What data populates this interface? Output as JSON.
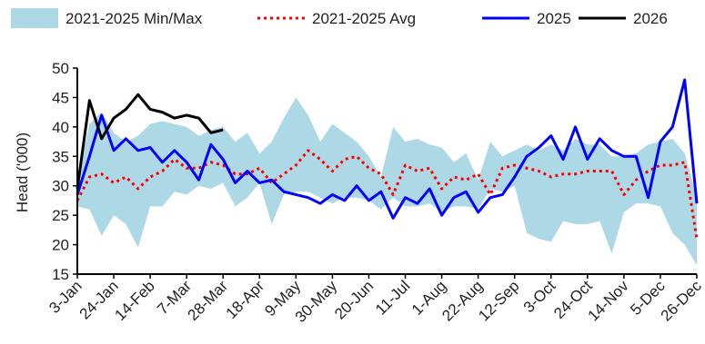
{
  "chart_data": {
    "type": "line",
    "ylabel": "Head ('000)",
    "xlabel": "",
    "ylim": [
      15,
      50
    ],
    "yticks": [
      15,
      20,
      25,
      30,
      35,
      40,
      45,
      50
    ],
    "week_count": 52,
    "x_tick_labels": [
      "3-Jan",
      "24-Jan",
      "14-Feb",
      "7-Mar",
      "28-Mar",
      "18-Apr",
      "9-May",
      "30-May",
      "20-Jun",
      "11-Jul",
      "1-Aug",
      "22-Aug",
      "12-Sep",
      "3-Oct",
      "24-Oct",
      "14-Nov",
      "5-Dec",
      "26-Dec"
    ],
    "legend": [
      {
        "label": "2021-2025 Min/Max",
        "kind": "band",
        "color": "#add8e6"
      },
      {
        "label": "2021-2025 Avg",
        "kind": "dotted",
        "color": "#ff0000"
      },
      {
        "label": "2025",
        "kind": "line",
        "color": "#0000ff"
      },
      {
        "label": "2026",
        "kind": "line",
        "color": "#000000"
      }
    ],
    "band": {
      "name": "2021-2025 Min/Max",
      "color": "#add8e6",
      "max": [
        31,
        40.5,
        42.5,
        39,
        37.5,
        38.5,
        40.5,
        41,
        40.5,
        40,
        38.5,
        39.5,
        40,
        37.5,
        39,
        35.5,
        37.5,
        41.5,
        45,
        42,
        37.5,
        40.5,
        39,
        37.5,
        35,
        31.5,
        40,
        37.5,
        38,
        37,
        36.5,
        34,
        35.5,
        31,
        37.5,
        35,
        36,
        37,
        36,
        37,
        36,
        38,
        37,
        37,
        35,
        35,
        35.5,
        37,
        37.5,
        38,
        35.5,
        28
      ],
      "min": [
        26.5,
        26,
        21.5,
        25,
        23.5,
        19.5,
        26.5,
        26.5,
        29,
        28.5,
        30,
        29.5,
        30.5,
        26.5,
        28,
        30.5,
        23.5,
        28.5,
        29,
        29,
        28,
        27,
        28,
        28,
        27.5,
        26,
        28,
        26.5,
        26.5,
        27,
        25.5,
        26.5,
        26.5,
        26,
        29.5,
        29,
        30,
        22,
        21,
        20.5,
        24,
        23.5,
        23.5,
        24,
        18.5,
        25.5,
        27,
        27,
        26.5,
        22,
        20,
        16.5
      ]
    },
    "series": [
      {
        "name": "2021-2025 Avg",
        "color": "#ff0000",
        "style": "dotted",
        "values": [
          27.5,
          31.5,
          32,
          30.5,
          31.5,
          29.5,
          31.5,
          32.5,
          34.5,
          33,
          33,
          34,
          33.5,
          32,
          32,
          33,
          30.5,
          32,
          33.5,
          36,
          34.5,
          32.5,
          34.5,
          35,
          33,
          32,
          28.5,
          33.5,
          32.5,
          33,
          29.5,
          31.5,
          31,
          32,
          28.5,
          33,
          33.5,
          33,
          32.5,
          31.5,
          32,
          32,
          32.5,
          32.5,
          32.5,
          28.5,
          31,
          32.5,
          33.5,
          33.5,
          34,
          21
        ]
      },
      {
        "name": "2025",
        "color": "#0000ff",
        "style": "solid",
        "values": [
          28.5,
          35,
          42,
          36,
          38,
          36,
          36.5,
          34,
          36,
          34,
          31,
          37,
          34.5,
          30.5,
          32.5,
          30.5,
          31,
          29,
          28.5,
          28,
          27,
          28.5,
          27.5,
          30,
          27.5,
          29,
          24.5,
          28,
          27,
          29.5,
          25,
          28,
          29,
          25.5,
          28,
          28.5,
          31.5,
          35,
          36.5,
          38.5,
          34.5,
          40,
          34.5,
          38,
          36,
          35,
          35,
          28,
          37.5,
          40,
          48,
          27
        ]
      },
      {
        "name": "2026",
        "color": "#000000",
        "style": "solid",
        "values": [
          29.5,
          44.5,
          38,
          41.5,
          43,
          45.5,
          43,
          42.5,
          41.5,
          42,
          41.5,
          39,
          39.5
        ]
      }
    ]
  }
}
